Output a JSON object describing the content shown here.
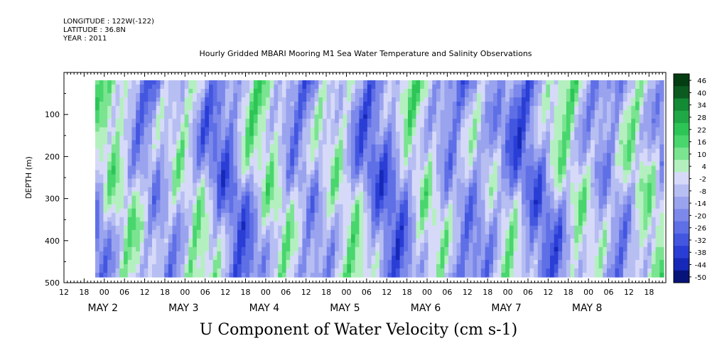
{
  "meta": {
    "longitude": "LONGITUDE : 122W(-122)",
    "latitude": "LATITUDE : 36.8N",
    "year": "YEAR : 2011"
  },
  "chart_data": {
    "type": "heatmap",
    "title": "Hourly Gridded MBARI Mooring M1 Sea Water Temperature and Salinity Observations",
    "bottom_title": "U Component of Water Velocity (cm s-1)",
    "xlabel": "",
    "ylabel": "DEPTH (m)",
    "ylim": [
      500,
      0
    ],
    "y_ticks": [
      100,
      200,
      300,
      400,
      500
    ],
    "x_start": "2011-05-01 12:00",
    "x_end": "2011-05-08 23:00",
    "hour_tick_labels": [
      "12",
      "18",
      "00",
      "06",
      "12",
      "18",
      "00",
      "06",
      "12",
      "18",
      "00",
      "06",
      "12",
      "18",
      "00",
      "06",
      "12",
      "18",
      "00",
      "06",
      "12",
      "18",
      "00",
      "06",
      "12",
      "18",
      "00",
      "06",
      "12",
      "18"
    ],
    "day_labels": [
      "MAY  2",
      "MAY  3",
      "MAY  4",
      "MAY  5",
      "MAY  6",
      "MAY  7",
      "MAY  8"
    ],
    "colorbar_labels": [
      "46",
      "40",
      "34",
      "28",
      "22",
      "16",
      "10",
      "4",
      "-2",
      "-8",
      "-14",
      "-20",
      "-26",
      "-32",
      "-38",
      "-44",
      "-50"
    ],
    "colorbar_range": [
      -50,
      52
    ],
    "colors": {
      "strong_positive": "#0a4f1a",
      "positive": "#3fd26a",
      "weak_positive": "#b8f0c0",
      "weak_negative": "#c8cdf6",
      "negative": "#8a98ee",
      "strong_negative": "#1a2ed8",
      "darkest_negative": "#06106e"
    },
    "note_values": "Field varies roughly between -30 and +25 cm/s across depth 20-490 m"
  }
}
